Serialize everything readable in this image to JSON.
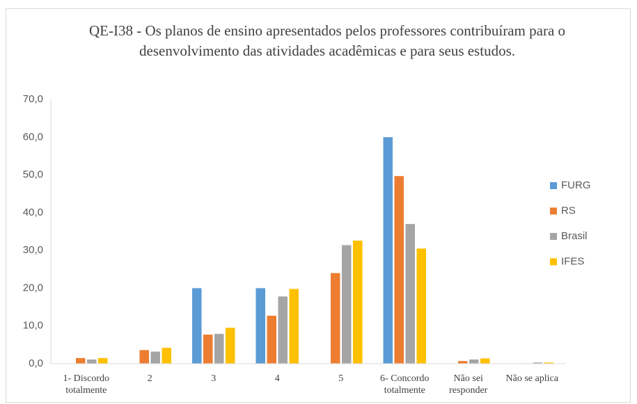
{
  "chart_data": {
    "type": "bar",
    "title": "QE-I38 - Os planos de ensino apresentados pelos professores contribuíram para o desenvolvimento das atividades acadêmicas e para seus estudos.",
    "categories": [
      "1- Discordo totalmente",
      "2",
      "3",
      "4",
      "5",
      "6- Concordo totalmente",
      "Não sei responder",
      "Não se aplica"
    ],
    "series": [
      {
        "name": "FURG",
        "color": "#5b9bd5",
        "values": [
          0,
          0,
          20,
          20,
          0,
          60,
          0,
          0
        ]
      },
      {
        "name": "RS",
        "color": "#ed7d31",
        "values": [
          1.5,
          3.6,
          7.7,
          12.7,
          24.0,
          49.7,
          0.7,
          0.1
        ]
      },
      {
        "name": "Brasil",
        "color": "#a5a5a5",
        "values": [
          1.1,
          3.2,
          7.9,
          17.8,
          31.4,
          37.0,
          1.1,
          0.3
        ]
      },
      {
        "name": "IFES",
        "color": "#ffc000",
        "values": [
          1.5,
          4.2,
          9.5,
          19.8,
          32.6,
          30.5,
          1.4,
          0.3
        ]
      }
    ],
    "ylim": [
      0,
      70
    ],
    "yticks": [
      {
        "value": 0,
        "label": "0,0"
      },
      {
        "value": 10,
        "label": "10,0"
      },
      {
        "value": 20,
        "label": "20,0"
      },
      {
        "value": 30,
        "label": "30,0"
      },
      {
        "value": 40,
        "label": "40,0"
      },
      {
        "value": 50,
        "label": "50,0"
      },
      {
        "value": 60,
        "label": "60,0"
      },
      {
        "value": 70,
        "label": "70,0"
      }
    ],
    "grid": false,
    "legend": "right"
  }
}
